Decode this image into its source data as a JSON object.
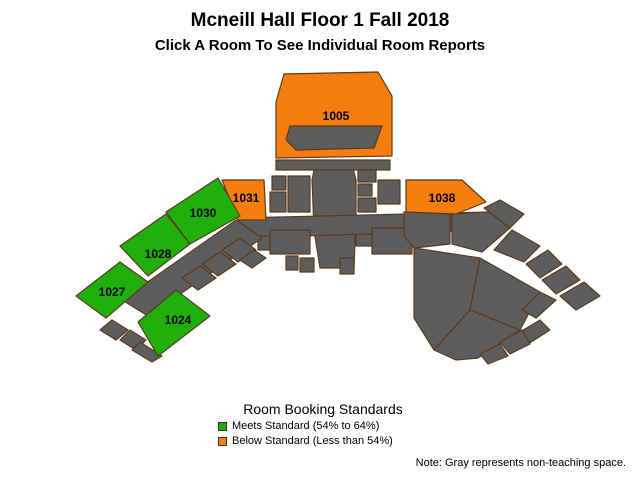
{
  "title": "Mcneill Hall Floor 1 Fall 2018",
  "subtitle": "Click A Room To See Individual Room Reports",
  "colors": {
    "meets": "#1faf0d",
    "below": "#f57e0f",
    "gray": "#5d5d5d",
    "outline": "#5a3a1a"
  },
  "rooms": [
    {
      "id": "1005",
      "status": "below"
    },
    {
      "id": "1031",
      "status": "below"
    },
    {
      "id": "1038",
      "status": "below"
    },
    {
      "id": "1030",
      "status": "meets"
    },
    {
      "id": "1028",
      "status": "meets"
    },
    {
      "id": "1027",
      "status": "meets"
    },
    {
      "id": "1024",
      "status": "meets"
    }
  ],
  "legend": {
    "title": "Room Booking Standards",
    "items": [
      {
        "label": "Meets Standard (54% to 64%)",
        "color": "#1faf0d"
      },
      {
        "label": "Below Standard (Less than 54%)",
        "color": "#f57e0f"
      }
    ]
  },
  "note": "Note: Gray represents non-teaching space."
}
